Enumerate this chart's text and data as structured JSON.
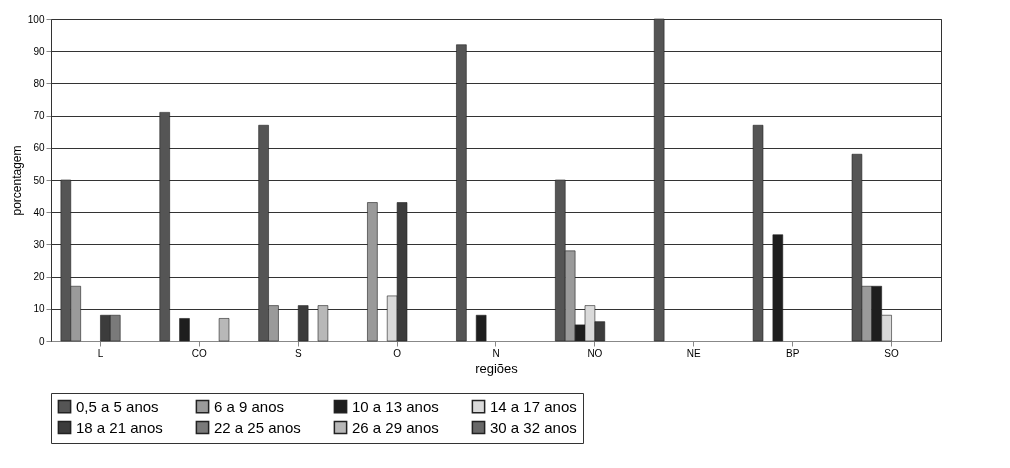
{
  "chart_data": {
    "type": "bar",
    "xlabel": "regiões",
    "ylabel": "porcentagem",
    "categories": [
      "L",
      "CO",
      "S",
      "O",
      "N",
      "NO",
      "NE",
      "BP",
      "SO"
    ],
    "series": [
      {
        "name": "0,5 a 5 anos",
        "color": "#555555",
        "values": [
          50,
          71,
          67,
          null,
          92,
          50,
          100,
          67,
          58
        ]
      },
      {
        "name": "6 a 9 anos",
        "color": "#9a9a9a",
        "values": [
          17,
          null,
          11,
          43,
          null,
          28,
          null,
          null,
          17
        ]
      },
      {
        "name": "10 a 13 anos",
        "color": "#1e1e1e",
        "values": [
          null,
          7,
          null,
          null,
          8,
          5,
          null,
          33,
          17
        ]
      },
      {
        "name": "14 a 17 anos",
        "color": "#dadada",
        "values": [
          null,
          null,
          null,
          14,
          null,
          11,
          null,
          null,
          8
        ]
      },
      {
        "name": "18 a 21 anos",
        "color": "#3c3c3c",
        "values": [
          8,
          null,
          11,
          43,
          null,
          6,
          null,
          null,
          null
        ]
      },
      {
        "name": "22 a 25 anos",
        "color": "#7a7a7a",
        "values": [
          8,
          null,
          null,
          null,
          null,
          null,
          null,
          null,
          null
        ]
      },
      {
        "name": "26 a 29 anos",
        "color": "#b8b8b8",
        "values": [
          null,
          7,
          11,
          null,
          null,
          null,
          null,
          null,
          null
        ]
      },
      {
        "name": "30 a 32 anos",
        "color": "#686868",
        "values": [
          null,
          null,
          null,
          null,
          null,
          null,
          null,
          null,
          null
        ]
      }
    ],
    "ylim": [
      0,
      100
    ],
    "yticks": [
      0,
      10,
      20,
      30,
      40,
      50,
      60,
      70,
      80,
      90,
      100
    ],
    "grid": "y",
    "legend": "bottom"
  }
}
